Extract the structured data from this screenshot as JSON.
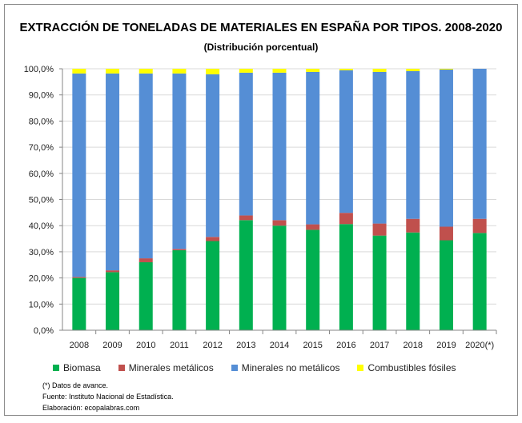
{
  "chart_data": {
    "type": "bar",
    "stacked": true,
    "title": "EXTRACCIÓN DE TONELADAS DE MATERIALES EN ESPAÑA POR TIPOS. 2008-2020",
    "subtitle": "(Distribución porcentual)",
    "xlabel": "",
    "ylabel": "",
    "ylim": [
      0,
      100
    ],
    "yticks": [
      "0,0%",
      "10,0%",
      "20,0%",
      "30,0%",
      "40,0%",
      "50,0%",
      "60,0%",
      "70,0%",
      "80,0%",
      "90,0%",
      "100,0%"
    ],
    "grid": true,
    "legend_position": "bottom",
    "categories": [
      "2008",
      "2009",
      "2010",
      "2011",
      "2012",
      "2013",
      "2014",
      "2015",
      "2016",
      "2017",
      "2018",
      "2019",
      "2020(*)"
    ],
    "series": [
      {
        "name": "Biomasa",
        "color": "#00b050",
        "values": [
          20.0,
          22.2,
          26.0,
          30.6,
          34.1,
          42.1,
          40.0,
          38.4,
          40.6,
          36.2,
          37.4,
          34.4,
          37.2
        ]
      },
      {
        "name": "Minerales metálicos",
        "color": "#c0504d",
        "values": [
          0.4,
          0.7,
          1.5,
          0.5,
          1.6,
          1.8,
          2.1,
          2.1,
          4.3,
          4.6,
          5.2,
          5.2,
          5.4
        ]
      },
      {
        "name": "Minerales no metálicos",
        "color": "#558ed5",
        "values": [
          77.8,
          75.3,
          70.7,
          67.1,
          62.2,
          54.6,
          56.4,
          58.3,
          54.5,
          58.0,
          56.5,
          60.1,
          57.4
        ]
      },
      {
        "name": "Combustibles fósiles",
        "color": "#ffff00",
        "values": [
          1.8,
          1.8,
          1.8,
          1.8,
          2.1,
          1.5,
          1.5,
          1.2,
          0.6,
          1.2,
          0.9,
          0.3,
          0.0
        ]
      }
    ]
  },
  "notes": {
    "advance": "(*) Datos de avance.",
    "source": "Fuente: Instituto Nacional de Estadística.",
    "credit": "Elaboración: ecopalabras.com"
  }
}
